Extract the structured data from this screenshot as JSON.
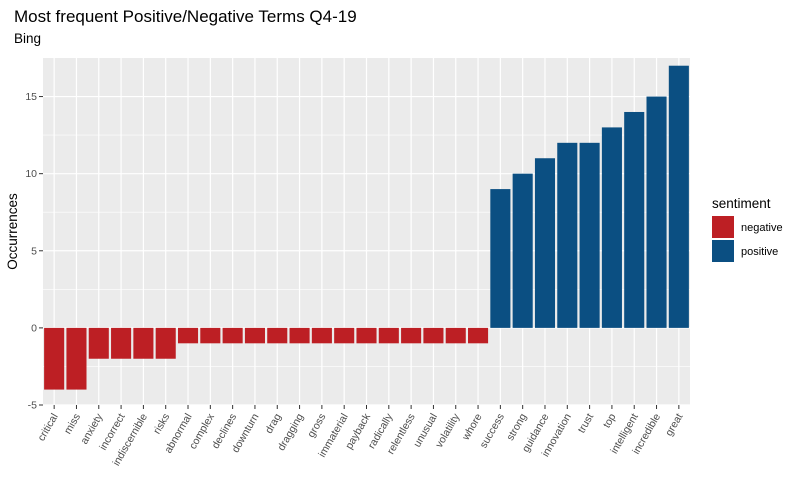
{
  "chart_data": {
    "type": "bar",
    "title": "Most frequent Positive/Negative Terms Q4-19",
    "subtitle": "Bing",
    "xlabel": "",
    "ylabel": "Occurrences",
    "ylim": [
      -5,
      17.5
    ],
    "yticks": [
      -5,
      0,
      5,
      10,
      15
    ],
    "grid": true,
    "legend": {
      "title": "sentiment",
      "placement": "right",
      "entries": [
        {
          "label": "negative",
          "color": "#BD1F24"
        },
        {
          "label": "positive",
          "color": "#0B4F82"
        }
      ]
    },
    "categories": [
      "critical",
      "miss",
      "anxiety",
      "incorrect",
      "indiscernible",
      "risks",
      "abnormal",
      "complex",
      "declines",
      "downturn",
      "drag",
      "dragging",
      "gross",
      "immaterial",
      "payback",
      "radically",
      "relentless",
      "unusual",
      "volatility",
      "whore",
      "success",
      "strong",
      "guidance",
      "innovation",
      "trust",
      "top",
      "intelligent",
      "incredible",
      "great"
    ],
    "values": [
      -4,
      -4,
      -2,
      -2,
      -2,
      -2,
      -1,
      -1,
      -1,
      -1,
      -1,
      -1,
      -1,
      -1,
      -1,
      -1,
      -1,
      -1,
      -1,
      -1,
      9,
      10,
      11,
      12,
      12,
      13,
      14,
      15,
      17
    ],
    "sentiment": [
      "negative",
      "negative",
      "negative",
      "negative",
      "negative",
      "negative",
      "negative",
      "negative",
      "negative",
      "negative",
      "negative",
      "negative",
      "negative",
      "negative",
      "negative",
      "negative",
      "negative",
      "negative",
      "negative",
      "negative",
      "positive",
      "positive",
      "positive",
      "positive",
      "positive",
      "positive",
      "positive",
      "positive",
      "positive"
    ]
  },
  "colors": {
    "panel_background": "#EBEBEB",
    "grid_major": "#FFFFFF",
    "negative": "#BD1F24",
    "positive": "#0B4F82"
  }
}
